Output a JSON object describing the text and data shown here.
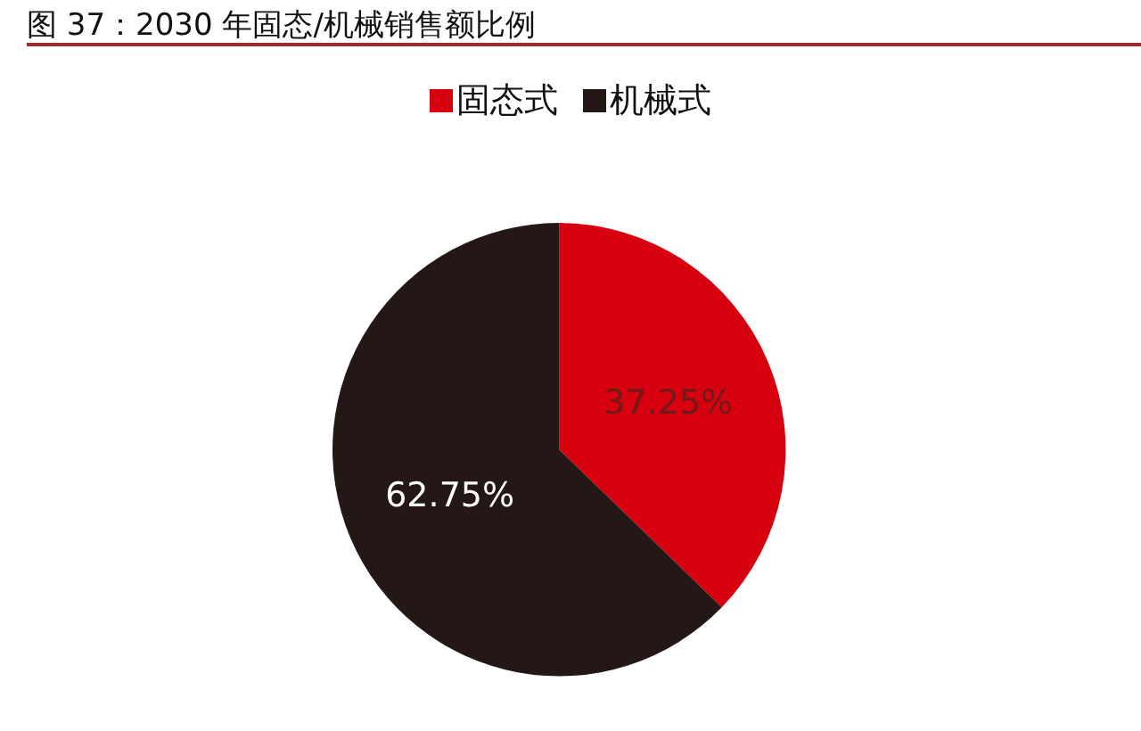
{
  "chart_data": {
    "type": "pie",
    "title": "图 37：2030 年固态/机械销售额比例",
    "categories": [
      "固态式",
      "机械式"
    ],
    "values": [
      37.25,
      62.75
    ],
    "colors": [
      "#d7000f",
      "#231815"
    ],
    "value_labels": [
      "37.25%",
      "62.75%"
    ],
    "legend": "top"
  }
}
